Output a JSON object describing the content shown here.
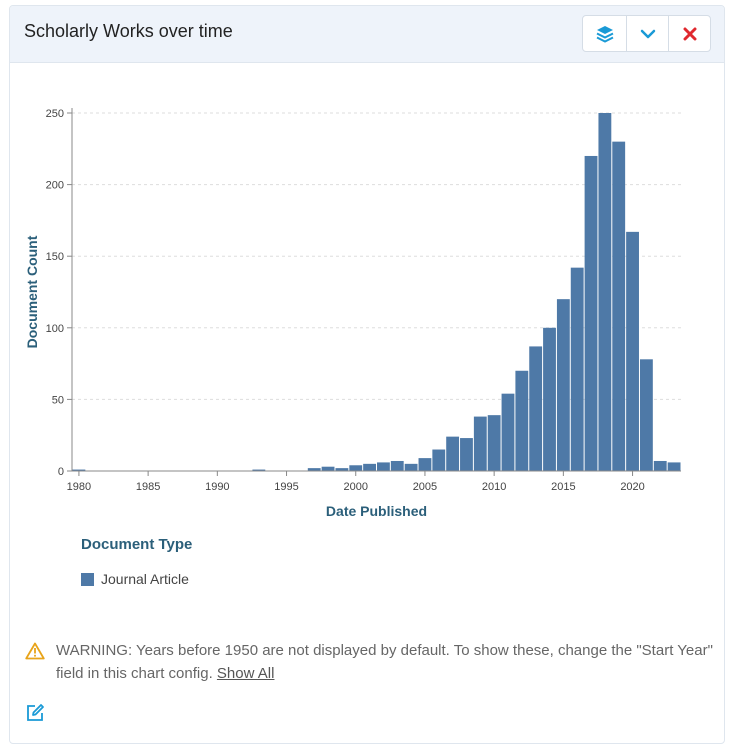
{
  "panel": {
    "title": "Scholarly Works over time",
    "buttons": [
      {
        "name": "layers-button",
        "icon": "layers-icon"
      },
      {
        "name": "collapse-button",
        "icon": "chevron-down-icon"
      },
      {
        "name": "close-button",
        "icon": "close-icon"
      }
    ]
  },
  "chart_data": {
    "type": "bar",
    "xlabel": "Date Published",
    "ylabel": "Document Count",
    "xlim": [
      1979.5,
      2023.5
    ],
    "ylim": [
      0,
      250
    ],
    "xticks": [
      1980,
      1985,
      1990,
      1995,
      2000,
      2005,
      2010,
      2015,
      2020
    ],
    "yticks": [
      0,
      50,
      100,
      150,
      200,
      250
    ],
    "grid": "horizontal",
    "color": "#4e79a7",
    "series": [
      {
        "name": "Journal Article",
        "x": [
          1980,
          1993,
          1997,
          1998,
          1999,
          2000,
          2001,
          2002,
          2003,
          2004,
          2005,
          2006,
          2007,
          2008,
          2009,
          2010,
          2011,
          2012,
          2013,
          2014,
          2015,
          2016,
          2017,
          2018,
          2019,
          2020,
          2021,
          2022,
          2023
        ],
        "values": [
          1,
          1,
          2,
          3,
          2,
          4,
          5,
          6,
          7,
          5,
          9,
          15,
          24,
          23,
          38,
          39,
          54,
          70,
          87,
          100,
          120,
          142,
          220,
          250,
          230,
          167,
          78,
          7,
          6
        ]
      }
    ]
  },
  "legend": {
    "title": "Document Type",
    "items": [
      "Journal Article"
    ]
  },
  "warning": {
    "text": "WARNING: Years before 1950 are not displayed by default. To show these, change the \"Start Year\" field in this chart config.",
    "link": "Show All"
  },
  "edit": {
    "icon": "edit-icon"
  }
}
